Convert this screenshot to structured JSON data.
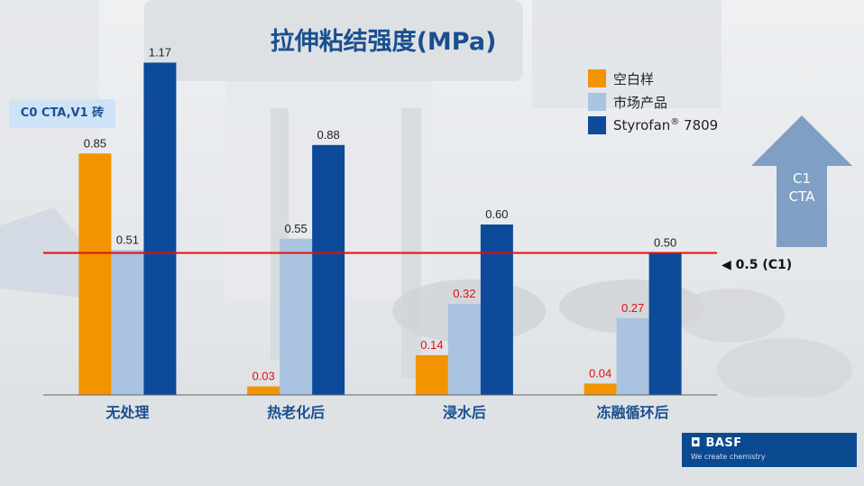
{
  "title": "拉伸粘结强度(MPa)",
  "tag": "C0 CTA,V1 砖",
  "reference": {
    "label": "◀ 0.5 (C1)",
    "value": 0.5,
    "color": "#e01010"
  },
  "arrow": {
    "line1": "C1",
    "line2": "CTA"
  },
  "brand": {
    "name": "◘ BASF",
    "tagline": "We create chemistry"
  },
  "legend": [
    {
      "label": "空白样",
      "color": "#f29400"
    },
    {
      "label": "市场产品",
      "color": "#a9c3e0"
    },
    {
      "label": "Styrofan",
      "sup": "®",
      "label_after": " 7809",
      "color": "#0d4a9a"
    }
  ],
  "chart_data": {
    "type": "bar",
    "categories": [
      "无处理",
      "热老化后",
      "浸水后",
      "冻融循环后"
    ],
    "series": [
      {
        "name": "空白样",
        "values": [
          0.85,
          0.03,
          0.14,
          0.04
        ],
        "labels": [
          "0.85",
          "0.03",
          "0.14",
          "0.04"
        ],
        "color": "#f29400"
      },
      {
        "name": "市场产品",
        "values": [
          0.51,
          0.55,
          0.32,
          0.27
        ],
        "labels": [
          "0.51",
          "0.55",
          "0.32",
          "0.27"
        ],
        "color": "#a9c3e0"
      },
      {
        "name": "Styrofan® 7809",
        "values": [
          1.17,
          0.88,
          0.6,
          0.5
        ],
        "labels": [
          "1.17",
          "0.88",
          "0.60",
          "0.50"
        ],
        "color": "#0d4a9a"
      }
    ],
    "ylim": [
      0,
      1.2
    ],
    "grid": false,
    "legend_position": "top-right",
    "below_reference_label_color": "#e01010",
    "normal_label_color": "#222222"
  }
}
